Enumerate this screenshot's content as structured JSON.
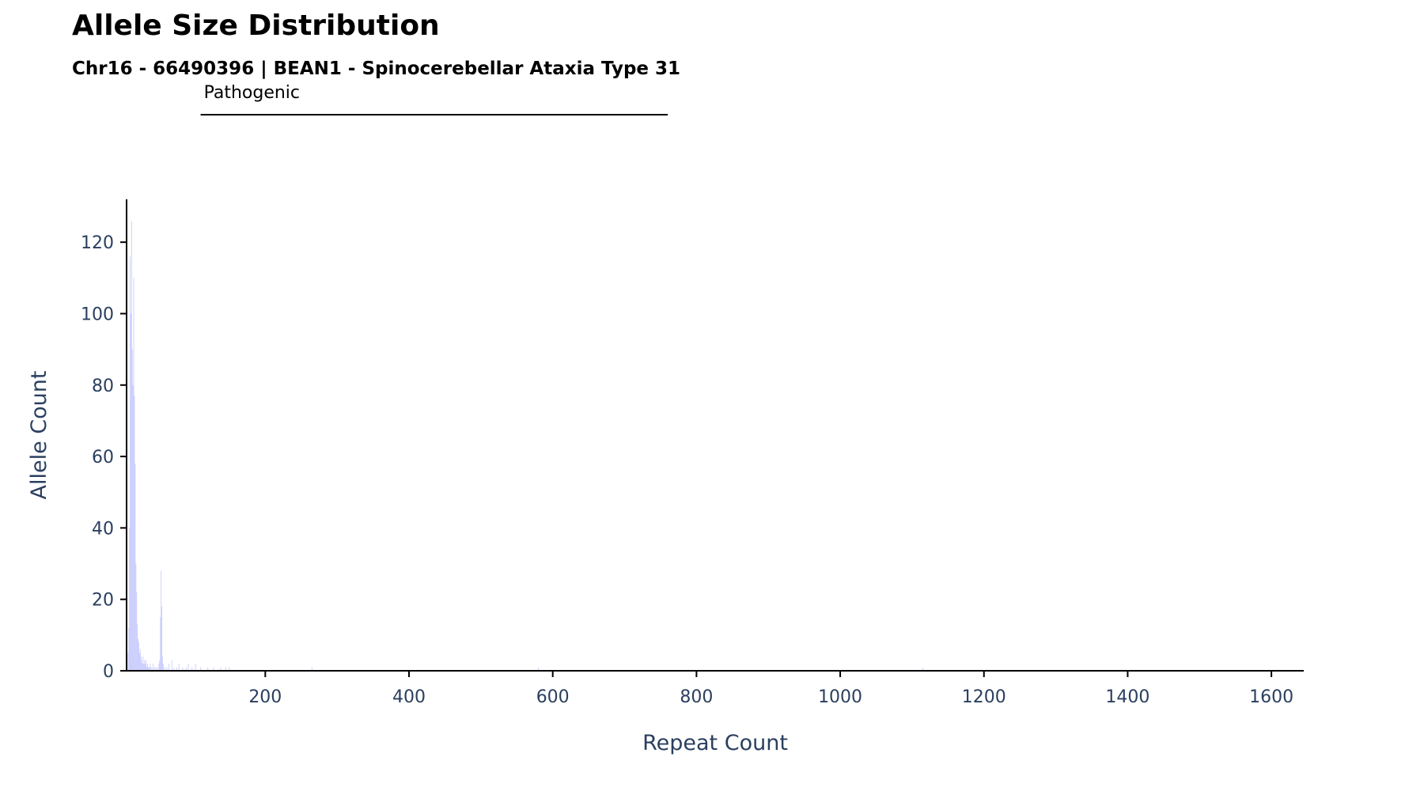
{
  "chart_data": {
    "type": "bar",
    "title": "Allele Size Distribution",
    "subtitle": "Chr16 - 66490396 | BEAN1 - Spinocerebellar Ataxia Type 31",
    "xlabel": "Repeat Count",
    "ylabel": "Allele Count",
    "xlim": [
      7,
      1645
    ],
    "ylim": [
      0,
      132
    ],
    "xticks": [
      200,
      400,
      600,
      800,
      1000,
      1200,
      1400,
      1600
    ],
    "yticks": [
      0,
      20,
      40,
      60,
      80,
      100,
      120
    ],
    "bar_color": "#636efa",
    "bar_opacity": 0.3,
    "annotation": {
      "label": "Pathogenic",
      "x_start": 110,
      "x_end": 760,
      "color": "#000000"
    },
    "points": [
      {
        "x": 9,
        "y": 5
      },
      {
        "x": 10,
        "y": 12
      },
      {
        "x": 11,
        "y": 40
      },
      {
        "x": 12,
        "y": 116
      },
      {
        "x": 13,
        "y": 100
      },
      {
        "x": 14,
        "y": 126
      },
      {
        "x": 15,
        "y": 90
      },
      {
        "x": 16,
        "y": 80
      },
      {
        "x": 17,
        "y": 110
      },
      {
        "x": 18,
        "y": 77
      },
      {
        "x": 19,
        "y": 58
      },
      {
        "x": 20,
        "y": 30
      },
      {
        "x": 21,
        "y": 22
      },
      {
        "x": 22,
        "y": 13
      },
      {
        "x": 23,
        "y": 9
      },
      {
        "x": 24,
        "y": 8
      },
      {
        "x": 25,
        "y": 5
      },
      {
        "x": 26,
        "y": 6
      },
      {
        "x": 27,
        "y": 4
      },
      {
        "x": 28,
        "y": 3
      },
      {
        "x": 29,
        "y": 2
      },
      {
        "x": 30,
        "y": 4
      },
      {
        "x": 31,
        "y": 2
      },
      {
        "x": 32,
        "y": 3
      },
      {
        "x": 33,
        "y": 2
      },
      {
        "x": 34,
        "y": 3
      },
      {
        "x": 35,
        "y": 1
      },
      {
        "x": 36,
        "y": 2
      },
      {
        "x": 37,
        "y": 1
      },
      {
        "x": 38,
        "y": 1
      },
      {
        "x": 39,
        "y": 1
      },
      {
        "x": 40,
        "y": 2
      },
      {
        "x": 42,
        "y": 1
      },
      {
        "x": 44,
        "y": 2
      },
      {
        "x": 46,
        "y": 1
      },
      {
        "x": 48,
        "y": 1
      },
      {
        "x": 50,
        "y": 1
      },
      {
        "x": 52,
        "y": 2
      },
      {
        "x": 53,
        "y": 3
      },
      {
        "x": 54,
        "y": 15
      },
      {
        "x": 55,
        "y": 28
      },
      {
        "x": 56,
        "y": 18
      },
      {
        "x": 57,
        "y": 4
      },
      {
        "x": 58,
        "y": 2
      },
      {
        "x": 60,
        "y": 1
      },
      {
        "x": 63,
        "y": 1
      },
      {
        "x": 66,
        "y": 2
      },
      {
        "x": 70,
        "y": 3
      },
      {
        "x": 73,
        "y": 1
      },
      {
        "x": 77,
        "y": 1
      },
      {
        "x": 80,
        "y": 2
      },
      {
        "x": 85,
        "y": 1
      },
      {
        "x": 90,
        "y": 1
      },
      {
        "x": 93,
        "y": 2
      },
      {
        "x": 98,
        "y": 1
      },
      {
        "x": 103,
        "y": 2
      },
      {
        "x": 110,
        "y": 1
      },
      {
        "x": 120,
        "y": 1
      },
      {
        "x": 128,
        "y": 1
      },
      {
        "x": 138,
        "y": 1
      },
      {
        "x": 145,
        "y": 1
      },
      {
        "x": 150,
        "y": 1
      },
      {
        "x": 265,
        "y": 1
      },
      {
        "x": 580,
        "y": 1
      },
      {
        "x": 1115,
        "y": 1
      }
    ]
  }
}
